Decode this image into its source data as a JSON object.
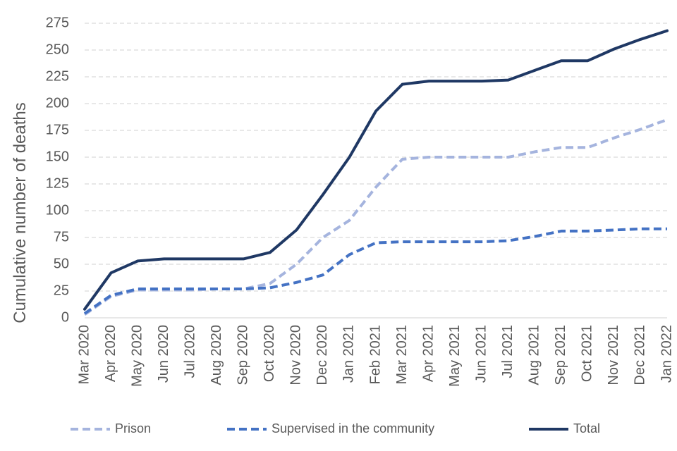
{
  "chart_data": {
    "type": "line",
    "title": "",
    "xlabel": "",
    "ylabel": "Cumulative number of deaths",
    "ylim": [
      0,
      275
    ],
    "yticks": [
      0,
      25,
      50,
      75,
      100,
      125,
      150,
      175,
      200,
      225,
      250,
      275
    ],
    "grid": true,
    "legend_position": "bottom",
    "categories": [
      "Mar 2020",
      "Apr 2020",
      "May 2020",
      "Jun 2020",
      "Jul 2020",
      "Aug 2020",
      "Sep 2020",
      "Oct 2020",
      "Nov 2020",
      "Dec 2020",
      "Jan 2021",
      "Feb 2021",
      "Mar 2021",
      "Apr 2021",
      "May 2021",
      "Jun 2021",
      "Jul 2021",
      "Aug 2021",
      "Sep 2021",
      "Oct 2021",
      "Nov 2021",
      "Dec 2021",
      "Jan 2022"
    ],
    "series": [
      {
        "name": "Prison",
        "color": "#a5b4de",
        "dashed": true,
        "values": [
          3,
          20,
          26,
          26,
          26,
          27,
          27,
          32,
          50,
          75,
          91,
          122,
          148,
          150,
          150,
          150,
          150,
          155,
          159,
          159,
          168,
          176,
          185
        ]
      },
      {
        "name": "Supervised in the community",
        "color": "#4472c4",
        "dashed": true,
        "values": [
          4,
          21,
          27,
          27,
          27,
          27,
          27,
          28,
          33,
          40,
          59,
          70,
          71,
          71,
          71,
          71,
          72,
          76,
          81,
          81,
          82,
          83,
          83
        ]
      },
      {
        "name": "Total",
        "color": "#1f3864",
        "dashed": false,
        "values": [
          8,
          42,
          53,
          55,
          55,
          55,
          55,
          61,
          82,
          115,
          150,
          193,
          218,
          221,
          221,
          221,
          222,
          231,
          240,
          240,
          251,
          260,
          268
        ]
      }
    ]
  }
}
